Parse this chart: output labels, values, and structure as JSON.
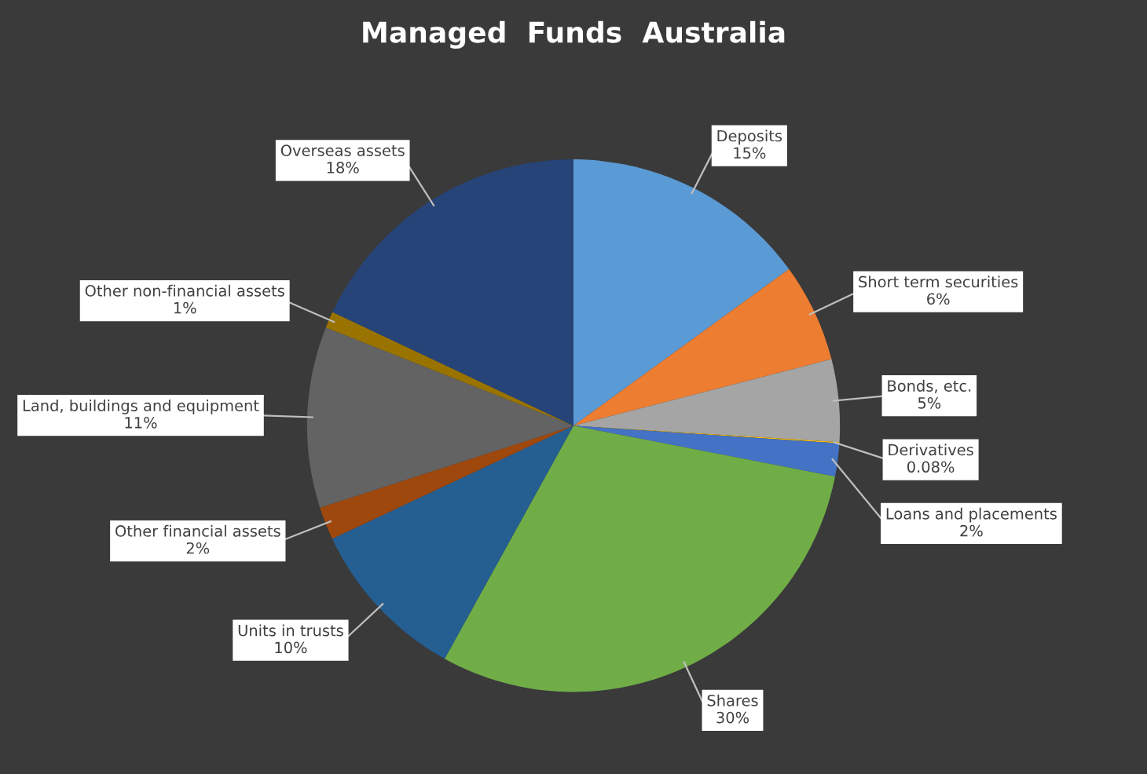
{
  "chart_data": {
    "type": "pie",
    "title": "Managed  Funds  Australia",
    "categories": [
      "Deposits",
      "Short term securities",
      "Bonds, etc.",
      "Derivatives",
      "Loans and placements",
      "Shares",
      "Units in trusts",
      "Other financial assets",
      "Land, buildings and equipment",
      "Other non-financial assets",
      "Overseas assets"
    ],
    "values": [
      15,
      6,
      5,
      0.08,
      2,
      30,
      10,
      2,
      11,
      1,
      18
    ],
    "value_labels": [
      "15%",
      "6%",
      "5%",
      "0.08%",
      "2%",
      "30%",
      "10%",
      "2%",
      "11%",
      "1%",
      "18%"
    ],
    "colors": [
      "#5b9bd5",
      "#ed7d31",
      "#a5a5a5",
      "#ffc000",
      "#4472c4",
      "#70ad47",
      "#255e91",
      "#9e480e",
      "#636363",
      "#997300",
      "#264478"
    ]
  }
}
